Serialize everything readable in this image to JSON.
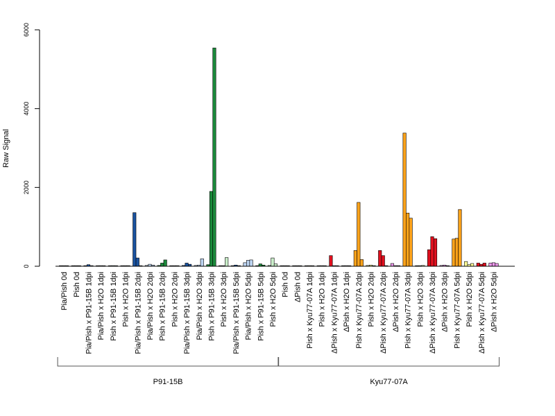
{
  "chart_data": {
    "type": "bar",
    "ylabel": "Raw Signal",
    "ylim": [
      0,
      6000
    ],
    "yticks": [
      0,
      2000,
      4000,
      6000
    ],
    "categories": [
      "Pia/Pish 0d",
      "Pish 0d",
      "Pia/Pish x P91-15B 1dpi",
      "Pia/Pish x H2O 1dpi",
      "Pish x P91-15B 1dpi",
      "Pish x H2O 1dpi",
      "Pia/Pish x P91-15B 2dpi",
      "Pia/Pish x H2O 2dpi",
      "Pish x P91-15B 2dpi",
      "Pish x H2O 2dpi",
      "Pia/Pish x P91-15B 3dpi",
      "Pia/Pish x H2O 3dpi",
      "Pish x P91-15B 3dpi",
      "Pish x H2O 3dpi",
      "Pia/Pish x P91-15B 5dpi",
      "Pia/Pish x H2O 5dpi",
      "Pish x P91-15B 5dpi",
      "Pish x H2O 5dpi",
      "Pish 0d",
      "ΔPish 0d",
      "Pish x Kyu77-07A 1dpi",
      "Pish x H2O 1dpi",
      "ΔPish x Kyu77-07A 1dpi",
      "ΔPish x H2O 1dpi",
      "Pish x Kyu77-07A 2dpi",
      "Pish x H2O 2dpi",
      "ΔPish x Kyu77-07A 2dpi",
      "ΔPish x H2O 2dpi",
      "Pish x Kyu77-07A 3dpi",
      "Pish x H2O 3dpi",
      "ΔPish x Kyu77-07A 3dpi",
      "ΔPish x H2O 3dpi",
      "Pish x Kyu77-07A 5dpi",
      "Pish x H2O 5dpi",
      "ΔPish x Kyu77-07A 5dpi",
      "ΔPish x H2O 5dpi"
    ],
    "values": [
      [
        10,
        10,
        10
      ],
      [
        10,
        10,
        10
      ],
      [
        15,
        40,
        15
      ],
      [
        10,
        15,
        10
      ],
      [
        10,
        15,
        10
      ],
      [
        10,
        10,
        15
      ],
      [
        1360,
        210,
        10
      ],
      [
        20,
        50,
        30
      ],
      [
        20,
        80,
        160
      ],
      [
        10,
        10,
        15
      ],
      [
        20,
        80,
        50
      ],
      [
        20,
        30,
        190
      ],
      [
        40,
        1900,
        5540
      ],
      [
        15,
        10,
        220
      ],
      [
        15,
        30,
        15
      ],
      [
        90,
        150,
        160
      ],
      [
        15,
        60,
        30
      ],
      [
        20,
        210,
        60
      ],
      [
        10,
        10,
        10
      ],
      [
        10,
        10,
        10
      ],
      [
        10,
        15,
        10
      ],
      [
        10,
        15,
        10
      ],
      [
        270,
        10,
        15
      ],
      [
        10,
        15,
        10
      ],
      [
        400,
        1620,
        170
      ],
      [
        20,
        30,
        15
      ],
      [
        400,
        270,
        15
      ],
      [
        70,
        15,
        15
      ],
      [
        3380,
        1350,
        1220
      ],
      [
        10,
        15,
        20
      ],
      [
        420,
        750,
        700
      ],
      [
        20,
        30,
        15
      ],
      [
        690,
        710,
        1440
      ],
      [
        120,
        40,
        70
      ],
      [
        80,
        50,
        80
      ],
      [
        80,
        90,
        70
      ]
    ],
    "colors": [
      "#ffffff",
      "#ffffff",
      "#1a53a0",
      "#bcd3f0",
      "#1c8a3c",
      "#c9edc9",
      "#1a53a0",
      "#bcd3f0",
      "#1c8a3c",
      "#c9edc9",
      "#1a53a0",
      "#bcd3f0",
      "#1c8a3c",
      "#c9edc9",
      "#1a53a0",
      "#bcd3f0",
      "#1c8a3c",
      "#c9edc9",
      "#ffffff",
      "#ffffff",
      "#ffa31a",
      "#ffff99",
      "#e0101e",
      "#ee99ee",
      "#ffa31a",
      "#ffff99",
      "#e0101e",
      "#ee99ee",
      "#ffa31a",
      "#ffff99",
      "#e0101e",
      "#ee99ee",
      "#ffa31a",
      "#ffff99",
      "#e0101e",
      "#ee99ee"
    ],
    "groups": [
      {
        "label": "P91-15B",
        "start": 0,
        "end": 17
      },
      {
        "label": "Kyu77-07A",
        "start": 18,
        "end": 35
      }
    ],
    "grid": false
  }
}
